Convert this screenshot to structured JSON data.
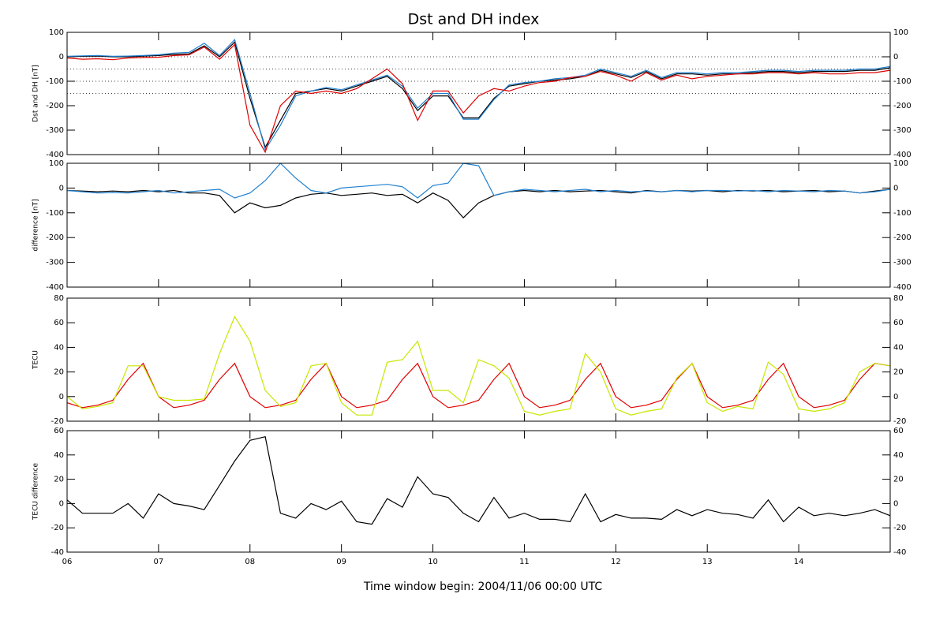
{
  "chart_data": [
    {
      "type": "line",
      "title": "Dst and DH index",
      "y_label": "Dst and DH [nT]",
      "x": [
        6,
        6.167,
        6.333,
        6.5,
        6.667,
        6.833,
        7,
        7.167,
        7.333,
        7.5,
        7.667,
        7.833,
        8,
        8.167,
        8.333,
        8.5,
        8.667,
        8.833,
        9,
        9.167,
        9.333,
        9.5,
        9.667,
        9.833,
        10,
        10.167,
        10.333,
        10.5,
        10.667,
        10.833,
        11,
        11.167,
        11.333,
        11.5,
        11.667,
        11.833,
        12,
        12.167,
        12.333,
        12.5,
        12.667,
        12.833,
        13,
        13.167,
        13.333,
        13.5,
        13.667,
        13.833,
        14,
        14.167,
        14.333,
        14.5,
        14.667,
        14.833,
        15
      ],
      "xlim": [
        6,
        15
      ],
      "xticks": [
        6,
        7,
        8,
        9,
        10,
        11,
        12,
        13,
        14
      ],
      "ylim": [
        -400,
        100
      ],
      "yticks": [
        -400,
        -300,
        -200,
        -100,
        0,
        100
      ],
      "reference_lines": [
        0,
        -50,
        -100,
        -150
      ],
      "series": [
        {
          "color": "#000000",
          "values": [
            0,
            2,
            3,
            0,
            0,
            3,
            5,
            10,
            12,
            45,
            0,
            60,
            -170,
            -370,
            -260,
            -150,
            -140,
            -130,
            -140,
            -120,
            -100,
            -80,
            -130,
            -220,
            -160,
            -160,
            -250,
            -250,
            -170,
            -120,
            -110,
            -100,
            -95,
            -90,
            -80,
            -55,
            -70,
            -85,
            -60,
            -90,
            -70,
            -70,
            -75,
            -70,
            -70,
            -65,
            -60,
            -60,
            -65,
            -60,
            -60,
            -60,
            -55,
            -55,
            -45
          ]
        },
        {
          "color": "#2080d0",
          "values": [
            2,
            4,
            5,
            2,
            3,
            5,
            8,
            15,
            18,
            55,
            5,
            70,
            -150,
            -380,
            -280,
            -160,
            -140,
            -125,
            -135,
            -115,
            -95,
            -75,
            -120,
            -210,
            -150,
            -150,
            -255,
            -255,
            -175,
            -115,
            -105,
            -100,
            -90,
            -85,
            -75,
            -50,
            -65,
            -80,
            -55,
            -85,
            -65,
            -65,
            -70,
            -65,
            -65,
            -60,
            -55,
            -55,
            -60,
            -55,
            -55,
            -55,
            -50,
            -50,
            -40
          ]
        },
        {
          "color": "#e00000",
          "values": [
            -5,
            -10,
            -8,
            -12,
            -5,
            -3,
            -2,
            5,
            8,
            40,
            -10,
            50,
            -280,
            -390,
            -200,
            -140,
            -150,
            -140,
            -150,
            -130,
            -90,
            -50,
            -110,
            -260,
            -140,
            -140,
            -230,
            -160,
            -130,
            -140,
            -120,
            -105,
            -100,
            -85,
            -80,
            -60,
            -75,
            -100,
            -65,
            -95,
            -75,
            -90,
            -80,
            -75,
            -70,
            -70,
            -65,
            -65,
            -70,
            -65,
            -70,
            -70,
            -65,
            -65,
            -55
          ]
        }
      ]
    },
    {
      "type": "line",
      "y_label": "difference [nT]",
      "x": [
        6,
        6.167,
        6.333,
        6.5,
        6.667,
        6.833,
        7,
        7.167,
        7.333,
        7.5,
        7.667,
        7.833,
        8,
        8.167,
        8.333,
        8.5,
        8.667,
        8.833,
        9,
        9.167,
        9.333,
        9.5,
        9.667,
        9.833,
        10,
        10.167,
        10.333,
        10.5,
        10.667,
        10.833,
        11,
        11.167,
        11.333,
        11.5,
        11.667,
        11.833,
        12,
        12.167,
        12.333,
        12.5,
        12.667,
        12.833,
        13,
        13.167,
        13.333,
        13.5,
        13.667,
        13.833,
        14,
        14.167,
        14.333,
        14.5,
        14.667,
        14.833,
        15
      ],
      "xlim": [
        6,
        15
      ],
      "xticks": [
        6,
        7,
        8,
        9,
        10,
        11,
        12,
        13,
        14
      ],
      "ylim": [
        -400,
        100
      ],
      "yticks": [
        -400,
        -300,
        -200,
        -100,
        0,
        100
      ],
      "series": [
        {
          "color": "#000000",
          "values": [
            -10,
            -12,
            -15,
            -12,
            -15,
            -10,
            -15,
            -10,
            -20,
            -20,
            -30,
            -100,
            -60,
            -80,
            -70,
            -40,
            -25,
            -20,
            -30,
            -25,
            -20,
            -30,
            -25,
            -60,
            -20,
            -50,
            -120,
            -60,
            -30,
            -15,
            -10,
            -15,
            -10,
            -15,
            -12,
            -10,
            -15,
            -20,
            -10,
            -15,
            -10,
            -12,
            -10,
            -15,
            -10,
            -12,
            -10,
            -15,
            -12,
            -10,
            -15,
            -12,
            -20,
            -12,
            -5
          ]
        },
        {
          "color": "#2080d0",
          "values": [
            -10,
            -15,
            -20,
            -18,
            -20,
            -15,
            -10,
            -20,
            -15,
            -10,
            -5,
            -40,
            -20,
            30,
            100,
            40,
            -10,
            -20,
            0,
            5,
            10,
            15,
            5,
            -40,
            10,
            20,
            100,
            90,
            -30,
            -15,
            -5,
            -10,
            -15,
            -10,
            -5,
            -15,
            -10,
            -15,
            -12,
            -15,
            -10,
            -15,
            -10,
            -10,
            -12,
            -10,
            -15,
            -10,
            -12,
            -15,
            -10,
            -12,
            -20,
            -15,
            -5
          ]
        }
      ]
    },
    {
      "type": "line",
      "y_label": "TECU",
      "x": [
        6,
        6.167,
        6.333,
        6.5,
        6.667,
        6.833,
        7,
        7.167,
        7.333,
        7.5,
        7.667,
        7.833,
        8,
        8.167,
        8.333,
        8.5,
        8.667,
        8.833,
        9,
        9.167,
        9.333,
        9.5,
        9.667,
        9.833,
        10,
        10.167,
        10.333,
        10.5,
        10.667,
        10.833,
        11,
        11.167,
        11.333,
        11.5,
        11.667,
        11.833,
        12,
        12.167,
        12.333,
        12.5,
        12.667,
        12.833,
        13,
        13.167,
        13.333,
        13.5,
        13.667,
        13.833,
        14,
        14.167,
        14.333,
        14.5,
        14.667,
        14.833,
        15
      ],
      "xlim": [
        6,
        15
      ],
      "xticks": [
        6,
        7,
        8,
        9,
        10,
        11,
        12,
        13,
        14
      ],
      "ylim": [
        -20,
        80
      ],
      "yticks": [
        -20,
        0,
        20,
        40,
        60,
        80
      ],
      "series": [
        {
          "color": "#e00000",
          "values": [
            -5,
            -9,
            -7,
            -3,
            14,
            27,
            0,
            -9,
            -7,
            -3,
            14,
            27,
            0,
            -9,
            -7,
            -3,
            14,
            27,
            0,
            -9,
            -7,
            -3,
            14,
            27,
            0,
            -9,
            -7,
            -3,
            14,
            27,
            0,
            -9,
            -7,
            -3,
            14,
            27,
            0,
            -9,
            -7,
            -3,
            14,
            27,
            0,
            -9,
            -7,
            -3,
            14,
            27,
            0,
            -9,
            -7,
            -3,
            14,
            27,
            25
          ]
        },
        {
          "color": "#c8e600",
          "values": [
            0,
            -10,
            -8,
            -5,
            25,
            25,
            0,
            -3,
            -3,
            -2,
            35,
            65,
            45,
            5,
            -8,
            -5,
            25,
            27,
            -5,
            -15,
            -15,
            28,
            30,
            45,
            5,
            5,
            -5,
            30,
            25,
            15,
            -12,
            -15,
            -12,
            -10,
            35,
            20,
            -10,
            -15,
            -12,
            -10,
            15,
            27,
            -5,
            -12,
            -8,
            -10,
            28,
            18,
            -10,
            -12,
            -10,
            -5,
            20,
            27,
            25
          ]
        }
      ]
    },
    {
      "type": "line",
      "y_label": "TECU difference",
      "x_label": "Time window begin: 2004/11/06 00:00 UTC",
      "x": [
        6,
        6.167,
        6.333,
        6.5,
        6.667,
        6.833,
        7,
        7.167,
        7.333,
        7.5,
        7.667,
        7.833,
        8,
        8.167,
        8.333,
        8.5,
        8.667,
        8.833,
        9,
        9.167,
        9.333,
        9.5,
        9.667,
        9.833,
        10,
        10.167,
        10.333,
        10.5,
        10.667,
        10.833,
        11,
        11.167,
        11.333,
        11.5,
        11.667,
        11.833,
        12,
        12.167,
        12.333,
        12.5,
        12.667,
        12.833,
        13,
        13.167,
        13.333,
        13.5,
        13.667,
        13.833,
        14,
        14.167,
        14.333,
        14.5,
        14.667,
        14.833,
        15
      ],
      "xlim": [
        6,
        15
      ],
      "xticks": [
        {
          "value": 6,
          "label": "06"
        },
        {
          "value": 7,
          "label": "07"
        },
        {
          "value": 8,
          "label": "08"
        },
        {
          "value": 9,
          "label": "09"
        },
        {
          "value": 10,
          "label": "10"
        },
        {
          "value": 11,
          "label": "11"
        },
        {
          "value": 12,
          "label": "12"
        },
        {
          "value": 13,
          "label": "13"
        },
        {
          "value": 14,
          "label": "14"
        }
      ],
      "ylim": [
        -40,
        60
      ],
      "yticks": [
        -40,
        -20,
        0,
        20,
        40,
        60
      ],
      "series": [
        {
          "color": "#000000",
          "values": [
            3,
            -8,
            -8,
            -8,
            0,
            -12,
            8,
            0,
            -2,
            -5,
            15,
            35,
            52,
            55,
            -8,
            -12,
            0,
            -5,
            2,
            -15,
            -17,
            4,
            -3,
            22,
            8,
            5,
            -8,
            -15,
            5,
            -12,
            -8,
            -13,
            -13,
            -15,
            8,
            -15,
            -9,
            -12,
            -12,
            -13,
            -5,
            -10,
            -5,
            -8,
            -9,
            -12,
            3,
            -15,
            -3,
            -10,
            -8,
            -10,
            -8,
            -5,
            -10
          ]
        }
      ]
    }
  ]
}
